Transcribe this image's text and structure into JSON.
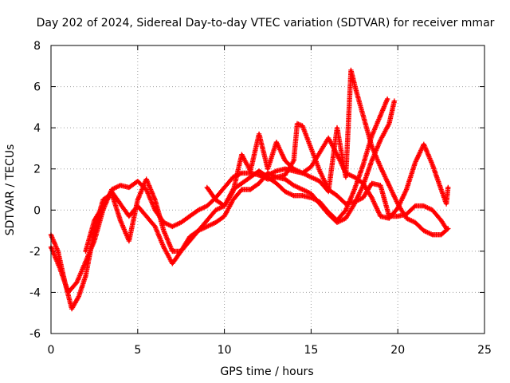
{
  "chart_data": {
    "type": "scatter",
    "title": "Day 202 of 2024, Sidereal Day-to-day VTEC variation (SDTVAR) for receiver mmar",
    "xlabel": "GPS time / hours",
    "ylabel": "SDTVAR / TECUs",
    "xlim": [
      0,
      25
    ],
    "ylim": [
      -6,
      8
    ],
    "x_ticks": [
      0,
      5,
      10,
      15,
      20,
      25
    ],
    "y_ticks": [
      -6,
      -4,
      -2,
      0,
      2,
      4,
      6,
      8
    ],
    "grid": true,
    "marker": "+",
    "color": "#ff0000",
    "series": [
      {
        "name": "trace-1",
        "points": [
          [
            0.0,
            -1.2
          ],
          [
            0.4,
            -2.0
          ],
          [
            0.8,
            -3.5
          ],
          [
            1.2,
            -4.8
          ],
          [
            1.6,
            -4.2
          ],
          [
            2.0,
            -3.2
          ],
          [
            2.5,
            -1.0
          ],
          [
            3.0,
            0.5
          ],
          [
            3.5,
            0.8
          ],
          [
            4.0,
            -0.5
          ],
          [
            4.5,
            -1.5
          ],
          [
            5.0,
            0.5
          ],
          [
            5.5,
            1.5
          ],
          [
            6.0,
            0.5
          ],
          [
            6.5,
            -1.0
          ],
          [
            7.0,
            -2.0
          ],
          [
            7.5,
            -2.0
          ],
          [
            8.0,
            -1.5
          ],
          [
            8.5,
            -1.0
          ],
          [
            9.0,
            -0.5
          ],
          [
            9.5,
            0.0
          ],
          [
            10.0,
            0.2
          ],
          [
            10.5,
            1.0
          ],
          [
            11.0,
            1.3
          ],
          [
            11.5,
            1.6
          ],
          [
            12.0,
            1.9
          ],
          [
            12.5,
            1.6
          ],
          [
            13.0,
            1.3
          ],
          [
            13.5,
            0.9
          ],
          [
            14.0,
            0.7
          ],
          [
            14.5,
            0.7
          ],
          [
            15.0,
            0.6
          ],
          [
            15.5,
            0.4
          ],
          [
            16.0,
            -0.1
          ],
          [
            16.5,
            -0.5
          ],
          [
            17.0,
            0.0
          ],
          [
            17.5,
            1.0
          ],
          [
            18.0,
            2.2
          ],
          [
            18.5,
            3.6
          ],
          [
            19.0,
            4.6
          ],
          [
            19.4,
            5.4
          ]
        ]
      },
      {
        "name": "trace-2",
        "points": [
          [
            0.0,
            -1.8
          ],
          [
            0.5,
            -2.8
          ],
          [
            1.0,
            -4.0
          ],
          [
            1.5,
            -3.5
          ],
          [
            2.0,
            -2.5
          ],
          [
            2.5,
            -1.5
          ],
          [
            3.0,
            0.0
          ],
          [
            3.5,
            1.0
          ],
          [
            4.0,
            1.2
          ],
          [
            4.5,
            1.1
          ],
          [
            5.0,
            1.4
          ],
          [
            5.5,
            1.0
          ],
          [
            6.0,
            0.0
          ],
          [
            6.5,
            -0.6
          ],
          [
            7.0,
            -0.8
          ],
          [
            7.5,
            -0.6
          ],
          [
            8.0,
            -0.3
          ],
          [
            8.5,
            0.0
          ],
          [
            9.0,
            0.2
          ],
          [
            9.5,
            0.6
          ],
          [
            10.0,
            1.1
          ],
          [
            10.5,
            1.6
          ],
          [
            11.0,
            1.8
          ],
          [
            11.5,
            1.8
          ],
          [
            12.0,
            1.7
          ],
          [
            12.5,
            1.5
          ],
          [
            13.0,
            1.6
          ],
          [
            13.5,
            1.5
          ],
          [
            14.0,
            1.2
          ],
          [
            14.5,
            1.0
          ],
          [
            15.0,
            0.8
          ],
          [
            15.5,
            0.3
          ],
          [
            16.0,
            -0.2
          ],
          [
            16.5,
            -0.6
          ],
          [
            17.0,
            -0.4
          ],
          [
            17.5,
            0.3
          ],
          [
            18.0,
            1.2
          ],
          [
            18.5,
            2.4
          ],
          [
            19.0,
            3.4
          ],
          [
            19.5,
            4.2
          ],
          [
            19.8,
            5.3
          ]
        ]
      },
      {
        "name": "trace-3",
        "points": [
          [
            2.0,
            -2.0
          ],
          [
            2.5,
            -0.5
          ],
          [
            3.0,
            0.2
          ],
          [
            3.5,
            0.9
          ],
          [
            4.0,
            0.3
          ],
          [
            4.5,
            -0.3
          ],
          [
            5.0,
            0.2
          ],
          [
            5.5,
            -0.3
          ],
          [
            6.0,
            -0.8
          ],
          [
            6.5,
            -1.8
          ],
          [
            7.0,
            -2.6
          ],
          [
            7.5,
            -2.0
          ],
          [
            8.0,
            -1.3
          ],
          [
            8.5,
            -1.0
          ],
          [
            9.0,
            -0.8
          ],
          [
            9.5,
            -0.6
          ],
          [
            10.0,
            -0.3
          ],
          [
            10.5,
            0.5
          ],
          [
            11.0,
            1.0
          ],
          [
            11.5,
            1.0
          ],
          [
            12.0,
            1.3
          ],
          [
            12.5,
            1.8
          ],
          [
            13.0,
            1.6
          ],
          [
            13.5,
            1.7
          ],
          [
            14.0,
            2.4
          ],
          [
            14.2,
            4.2
          ],
          [
            14.5,
            4.1
          ],
          [
            15.0,
            3.0
          ],
          [
            15.5,
            1.9
          ],
          [
            16.0,
            1.0
          ],
          [
            16.5,
            0.7
          ],
          [
            17.0,
            0.3
          ],
          [
            17.5,
            0.4
          ],
          [
            18.0,
            0.6
          ],
          [
            18.5,
            1.3
          ],
          [
            19.0,
            1.2
          ],
          [
            19.5,
            -0.3
          ],
          [
            20.0,
            -0.3
          ],
          [
            20.5,
            -0.2
          ],
          [
            21.0,
            0.2
          ],
          [
            21.5,
            0.2
          ],
          [
            22.0,
            0.0
          ],
          [
            22.5,
            -0.5
          ],
          [
            22.8,
            -0.9
          ]
        ]
      },
      {
        "name": "trace-4",
        "points": [
          [
            9.0,
            1.1
          ],
          [
            9.5,
            0.5
          ],
          [
            10.0,
            0.2
          ],
          [
            10.5,
            0.9
          ],
          [
            11.0,
            2.7
          ],
          [
            11.5,
            1.9
          ],
          [
            12.0,
            3.7
          ],
          [
            12.5,
            2.0
          ],
          [
            13.0,
            3.3
          ],
          [
            13.5,
            2.4
          ],
          [
            14.0,
            2.0
          ],
          [
            14.5,
            1.8
          ],
          [
            15.0,
            1.6
          ],
          [
            15.5,
            1.4
          ],
          [
            16.0,
            0.9
          ],
          [
            16.5,
            4.0
          ],
          [
            17.0,
            1.6
          ],
          [
            17.3,
            6.8
          ],
          [
            17.6,
            5.8
          ],
          [
            18.0,
            4.6
          ],
          [
            18.5,
            3.1
          ],
          [
            19.0,
            2.1
          ],
          [
            19.5,
            1.2
          ],
          [
            20.0,
            0.3
          ],
          [
            20.5,
            -0.4
          ],
          [
            21.0,
            -0.6
          ],
          [
            21.5,
            -1.0
          ],
          [
            22.0,
            -1.2
          ],
          [
            22.5,
            -1.2
          ],
          [
            22.9,
            -0.9
          ]
        ]
      },
      {
        "name": "trace-5",
        "points": [
          [
            12.0,
            1.7
          ],
          [
            12.5,
            1.7
          ],
          [
            13.0,
            1.9
          ],
          [
            13.5,
            2.0
          ],
          [
            14.0,
            1.9
          ],
          [
            14.5,
            1.8
          ],
          [
            15.0,
            2.1
          ],
          [
            15.5,
            2.8
          ],
          [
            16.0,
            3.5
          ],
          [
            16.5,
            2.7
          ],
          [
            17.0,
            1.8
          ],
          [
            17.5,
            1.6
          ],
          [
            18.0,
            1.3
          ],
          [
            18.5,
            0.6
          ],
          [
            19.0,
            -0.3
          ],
          [
            19.5,
            -0.4
          ],
          [
            20.0,
            0.1
          ],
          [
            20.5,
            1.0
          ],
          [
            21.0,
            2.3
          ],
          [
            21.5,
            3.2
          ],
          [
            22.0,
            2.2
          ],
          [
            22.5,
            1.0
          ],
          [
            22.8,
            0.3
          ],
          [
            22.9,
            1.1
          ]
        ]
      }
    ]
  }
}
